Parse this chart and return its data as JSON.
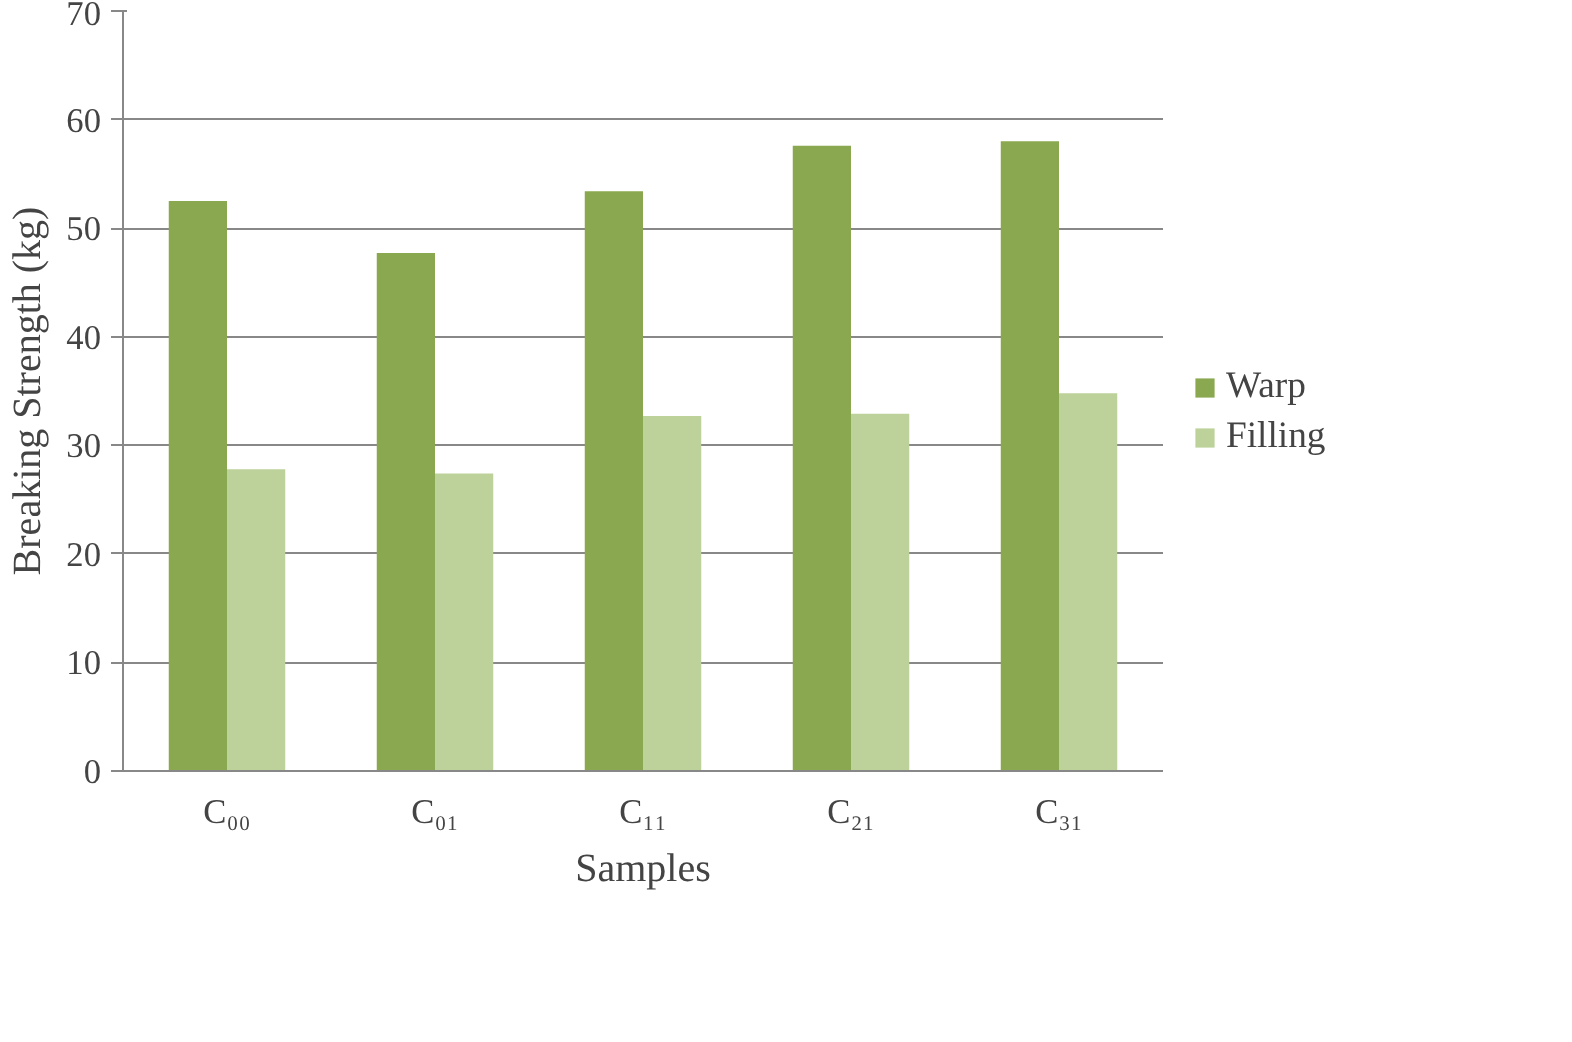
{
  "chart_data": {
    "type": "bar",
    "xlabel": "Samples",
    "ylabel": "Breaking Strength (kg)",
    "categories": [
      "C₀₀",
      "C₀₁",
      "C₁₁",
      "C₂₁",
      "C₃₁"
    ],
    "series": [
      {
        "name": "Warp",
        "color": "#8aa84f",
        "values": [
          52.5,
          47.7,
          53.4,
          57.6,
          58.0
        ]
      },
      {
        "name": "Filling",
        "color": "#bcd29a",
        "values": [
          27.8,
          27.4,
          32.7,
          32.9,
          34.8
        ]
      }
    ],
    "ylim": [
      0,
      70
    ],
    "yticks": [
      0,
      10,
      20,
      30,
      40,
      50,
      60,
      70
    ],
    "grid": "y",
    "legend": "right"
  }
}
